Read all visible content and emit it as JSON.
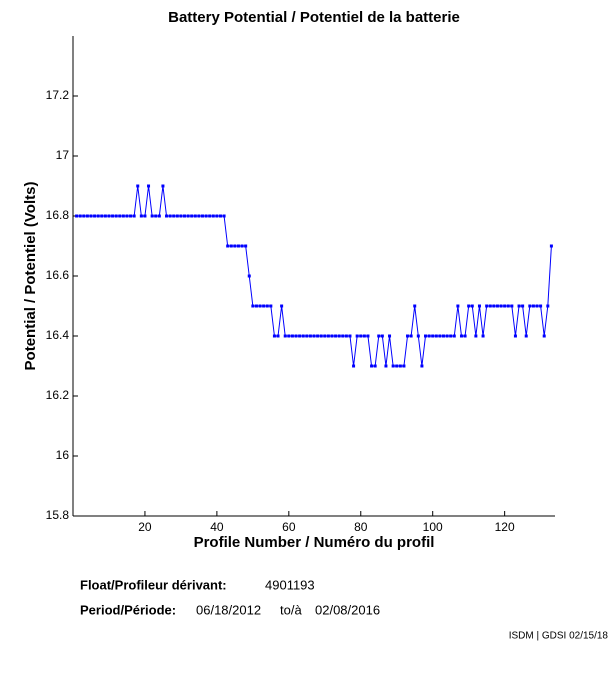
{
  "chart_data": {
    "type": "line",
    "title": "Battery Potential / Potentiel de la batterie",
    "xlabel": "Profile Number / Numéro du profil",
    "ylabel": "Potential / Potentiel (Volts)",
    "xlim": [
      0,
      134
    ],
    "ylim": [
      15.8,
      17.4
    ],
    "xticks": [
      20,
      40,
      60,
      80,
      100,
      120
    ],
    "yticks": [
      15.8,
      16,
      16.2,
      16.4,
      16.6,
      16.8,
      17,
      17.2
    ],
    "x": [
      1,
      2,
      3,
      4,
      5,
      6,
      7,
      8,
      9,
      10,
      11,
      12,
      13,
      14,
      15,
      16,
      17,
      18,
      19,
      20,
      21,
      22,
      23,
      24,
      25,
      26,
      27,
      28,
      29,
      30,
      31,
      32,
      33,
      34,
      35,
      36,
      37,
      38,
      39,
      40,
      41,
      42,
      43,
      44,
      45,
      46,
      47,
      48,
      49,
      50,
      51,
      52,
      53,
      54,
      55,
      56,
      57,
      58,
      59,
      60,
      61,
      62,
      63,
      64,
      65,
      66,
      67,
      68,
      69,
      70,
      71,
      72,
      73,
      74,
      75,
      76,
      77,
      78,
      79,
      80,
      81,
      82,
      83,
      84,
      85,
      86,
      87,
      88,
      89,
      90,
      91,
      92,
      93,
      94,
      95,
      96,
      97,
      98,
      99,
      100,
      101,
      102,
      103,
      104,
      105,
      106,
      107,
      108,
      109,
      110,
      111,
      112,
      113,
      114,
      115,
      116,
      117,
      118,
      119,
      120,
      121,
      122,
      123,
      124,
      125,
      126,
      127,
      128,
      129,
      130,
      131,
      132,
      133
    ],
    "series": [
      {
        "color": "#0000ff",
        "values": [
          16.8,
          16.8,
          16.8,
          16.8,
          16.8,
          16.8,
          16.8,
          16.8,
          16.8,
          16.8,
          16.8,
          16.8,
          16.8,
          16.8,
          16.8,
          16.8,
          16.8,
          16.9,
          16.8,
          16.8,
          16.9,
          16.8,
          16.8,
          16.8,
          16.9,
          16.8,
          16.8,
          16.8,
          16.8,
          16.8,
          16.8,
          16.8,
          16.8,
          16.8,
          16.8,
          16.8,
          16.8,
          16.8,
          16.8,
          16.8,
          16.8,
          16.8,
          16.7,
          16.7,
          16.7,
          16.7,
          16.7,
          16.7,
          16.6,
          16.5,
          16.5,
          16.5,
          16.5,
          16.5,
          16.5,
          16.4,
          16.4,
          16.5,
          16.4,
          16.4,
          16.4,
          16.4,
          16.4,
          16.4,
          16.4,
          16.4,
          16.4,
          16.4,
          16.4,
          16.4,
          16.4,
          16.4,
          16.4,
          16.4,
          16.4,
          16.4,
          16.4,
          16.3,
          16.4,
          16.4,
          16.4,
          16.4,
          16.3,
          16.3,
          16.4,
          16.4,
          16.3,
          16.4,
          16.3,
          16.3,
          16.3,
          16.3,
          16.4,
          16.4,
          16.5,
          16.4,
          16.3,
          16.4,
          16.4,
          16.4,
          16.4,
          16.4,
          16.4,
          16.4,
          16.4,
          16.4,
          16.5,
          16.4,
          16.4,
          16.5,
          16.5,
          16.4,
          16.5,
          16.4,
          16.5,
          16.5,
          16.5,
          16.5,
          16.5,
          16.5,
          16.5,
          16.5,
          16.4,
          16.5,
          16.5,
          16.4,
          16.5,
          16.5,
          16.5,
          16.5,
          16.4,
          16.5,
          16.7
        ]
      }
    ],
    "info": {
      "float_label": "Float/Profileur dérivant:",
      "float_id": "4901193",
      "period_label": "Period/Période:",
      "start": "06/18/2012",
      "to": "to/à",
      "end": "02/08/2016",
      "footer": "ISDM | GDSI 02/15/18"
    }
  }
}
